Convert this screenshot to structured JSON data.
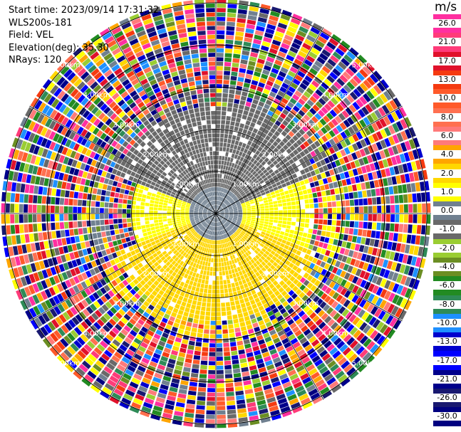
{
  "header": {
    "start_time": "Start time: 2023/09/14 17:31:32",
    "instrument": "WLS200s-181",
    "field": "Field: VEL",
    "elevation": "Elevation(deg): 35.30",
    "nrays": "NRays: 120"
  },
  "colorbar": {
    "unit": "m/s",
    "ticks": [
      "26.0",
      "21.0",
      "17.0",
      "13.0",
      "10.0",
      "8.0",
      "6.0",
      "4.0",
      "2.0",
      "1.0",
      "0.0",
      "-1.0",
      "-2.0",
      "-4.0",
      "-6.0",
      "-8.0",
      "-10.0",
      "-13.0",
      "-17.0",
      "-21.0",
      "-26.0",
      "-30.0"
    ],
    "colors": [
      "#ff2fa0",
      "#ff3b79",
      "#e0112b",
      "#f53a10",
      "#ff5a2a",
      "#ff7050",
      "#ff7a7a",
      "#ffa500",
      "#ffd700",
      "#ffff00",
      "#708090",
      "#696969",
      "#9acd32",
      "#6b8e23",
      "#228b22",
      "#2e8b57",
      "#1e90ff",
      "#0000cd",
      "#0000ff",
      "#00008b",
      "#191970",
      "#000080"
    ]
  },
  "chart_data": {
    "type": "heatmap",
    "projection": "polar PPI",
    "field": "VEL",
    "unit": "m/s",
    "nrays": 120,
    "elevation_deg": 35.3,
    "range_rings_km": [
      1.0,
      2.0,
      3.0,
      4.0,
      5.0
    ],
    "ring_labels": [
      "1.00km",
      "2.00km",
      "3.00km",
      "4.00km",
      "5.00km"
    ],
    "max_range_km": 5.1,
    "colorbar_range": [
      -30.0,
      26.0
    ],
    "regions": [
      {
        "range_km": [
          0.0,
          0.6
        ],
        "azimuth_deg": [
          0,
          360
        ],
        "velocity_ms": 0.0
      },
      {
        "range_km": [
          0.0,
          2.5
        ],
        "azimuth_deg": [
          290,
          70
        ],
        "velocity_ms": -1.5
      },
      {
        "range_km": [
          0.0,
          2.3
        ],
        "azimuth_deg": [
          70,
          110
        ],
        "velocity_ms": 0.5
      },
      {
        "range_km": [
          0.0,
          2.5
        ],
        "azimuth_deg": [
          110,
          250
        ],
        "velocity_ms": 2.5
      },
      {
        "range_km": [
          0.0,
          2.0
        ],
        "azimuth_deg": [
          250,
          290
        ],
        "velocity_ms": 0.5
      },
      {
        "range_km": [
          2.5,
          3.0
        ],
        "azimuth_deg": [
          0,
          360
        ],
        "velocity_ms": "mixed"
      },
      {
        "range_km": [
          3.0,
          5.1
        ],
        "azimuth_deg": [
          0,
          360
        ],
        "velocity_ms": "noise"
      }
    ]
  }
}
